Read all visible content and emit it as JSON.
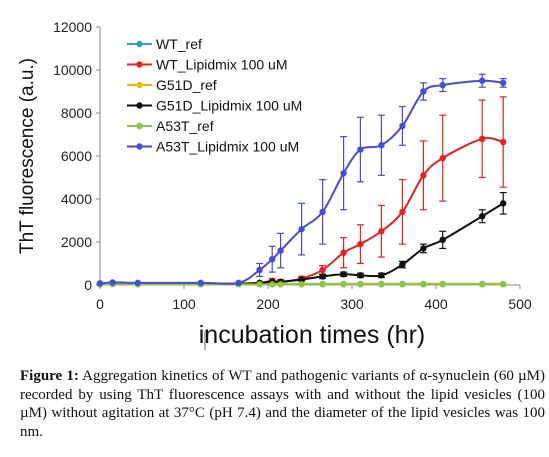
{
  "chart_data": {
    "type": "line",
    "ylabel": "ThT fluorescence (a.u.)",
    "xlabel": "incubation times (hr)",
    "xlim": [
      0,
      500
    ],
    "ylim": [
      0,
      12000
    ],
    "xticks": [
      0,
      100,
      200,
      300,
      400,
      500
    ],
    "yticks": [
      0,
      2000,
      4000,
      6000,
      8000,
      10000,
      12000
    ],
    "grid": false,
    "legend_position": "top-left",
    "series": [
      {
        "name": "WT_ref",
        "color": "#2ba6b5",
        "x": [
          0,
          15,
          45,
          120,
          165,
          190,
          205,
          215,
          240,
          265,
          290,
          310,
          335,
          360,
          385,
          408,
          455,
          480
        ],
        "y": [
          50,
          80,
          60,
          50,
          50,
          50,
          50,
          50,
          50,
          50,
          50,
          50,
          50,
          50,
          50,
          50,
          50,
          50
        ]
      },
      {
        "name": "WT_Lipidmix 100 uM",
        "color": "#e8201e",
        "x": [
          0,
          15,
          45,
          120,
          165,
          190,
          205,
          215,
          240,
          265,
          290,
          310,
          335,
          360,
          385,
          408,
          455,
          480
        ],
        "y": [
          60,
          80,
          80,
          60,
          60,
          100,
          200,
          150,
          300,
          700,
          1500,
          1900,
          2500,
          3400,
          5100,
          5900,
          6800,
          6650
        ],
        "err": [
          0,
          0,
          0,
          0,
          0,
          0,
          100,
          100,
          100,
          200,
          700,
          900,
          1200,
          1500,
          1600,
          2000,
          1800,
          2100
        ]
      },
      {
        "name": "G51D_ref",
        "color": "#f0b800",
        "x": [
          0,
          15,
          45,
          120,
          165,
          190,
          205,
          215,
          240,
          265,
          290,
          310,
          335,
          360,
          385,
          408,
          455,
          480
        ],
        "y": [
          40,
          50,
          40,
          40,
          40,
          40,
          40,
          40,
          40,
          40,
          40,
          40,
          40,
          40,
          40,
          40,
          40,
          40
        ]
      },
      {
        "name": "G51D_Lipidmix 100 uM",
        "color": "#111111",
        "x": [
          0,
          15,
          45,
          120,
          165,
          190,
          205,
          215,
          240,
          265,
          290,
          310,
          335,
          360,
          385,
          408,
          455,
          480
        ],
        "y": [
          60,
          80,
          80,
          60,
          60,
          100,
          150,
          150,
          250,
          400,
          500,
          450,
          450,
          950,
          1700,
          2100,
          3200,
          3800
        ],
        "err": [
          0,
          0,
          0,
          0,
          0,
          0,
          0,
          0,
          50,
          100,
          100,
          100,
          100,
          150,
          200,
          400,
          300,
          500
        ]
      },
      {
        "name": "A53T_ref",
        "color": "#8cc63f",
        "x": [
          0,
          15,
          45,
          120,
          165,
          190,
          205,
          215,
          240,
          265,
          290,
          310,
          335,
          360,
          385,
          408,
          455,
          480
        ],
        "y": [
          30,
          40,
          30,
          30,
          30,
          30,
          30,
          30,
          30,
          30,
          30,
          30,
          30,
          30,
          30,
          30,
          30,
          30
        ]
      },
      {
        "name": "A53T_Lipidmix 100 uM",
        "color": "#4a4ad8",
        "x": [
          0,
          15,
          45,
          120,
          165,
          190,
          205,
          215,
          240,
          265,
          290,
          310,
          335,
          360,
          385,
          408,
          455,
          480
        ],
        "y": [
          80,
          120,
          100,
          100,
          100,
          700,
          1200,
          1600,
          2600,
          3400,
          5200,
          6300,
          6500,
          7400,
          9000,
          9300,
          9500,
          9400
        ],
        "err": [
          0,
          0,
          0,
          0,
          0,
          300,
          600,
          800,
          1200,
          1500,
          1700,
          1500,
          1400,
          900,
          400,
          300,
          300,
          200
        ]
      }
    ]
  },
  "caption": {
    "label": "Figure 1:",
    "text": "Aggregation kinetics of WT and pathogenic variants of α-synuclein (60 µM) recorded by using ThT fluorescence assays with and without the lipid vesicles (100 µM) without agitation at 37°C (pH 7.4) and the diameter of the lipid vesicles was 100 nm."
  }
}
